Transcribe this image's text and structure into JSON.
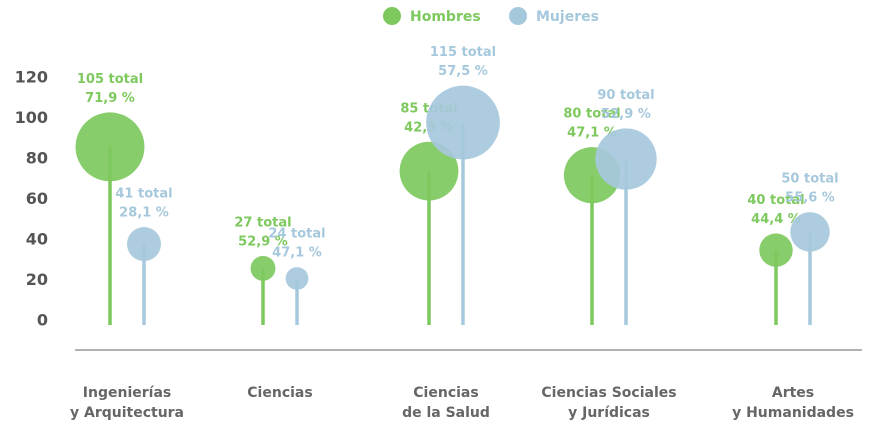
{
  "chart_data": {
    "type": "lollipop-bubble",
    "categories": [
      [
        "Ingenierías",
        "y Arquitectura"
      ],
      [
        "Ciencias"
      ],
      [
        "Ciencias",
        "de la Salud"
      ],
      [
        "Ciencias Sociales",
        "y Jurídicas"
      ],
      [
        "Artes",
        "y Humanidades"
      ]
    ],
    "series": [
      {
        "name": "Hombres",
        "color": "#7dc95e",
        "values": [
          86,
          26,
          74,
          72,
          35
        ],
        "sizes": [
          105,
          27,
          85,
          80,
          40
        ],
        "size_labels": [
          "105 total",
          "27 total",
          "85 total",
          "80 total",
          "40 total"
        ],
        "percents": [
          71.9,
          52.9,
          42.5,
          47.1,
          44.4
        ],
        "percent_labels": [
          "71,9 %",
          "52,9 %",
          "42,5 %",
          "47,1 %",
          "44,4 %"
        ]
      },
      {
        "name": "Mujeres",
        "color": "#a6c8dc",
        "values": [
          38,
          21,
          98,
          80,
          44
        ],
        "sizes": [
          41,
          24,
          115,
          90,
          50
        ],
        "size_labels": [
          "41 total",
          "24 total",
          "115 total",
          "90 total",
          "50 total"
        ],
        "percents": [
          28.1,
          47.1,
          57.5,
          52.9,
          55.6
        ],
        "percent_labels": [
          "28,1 %",
          "47,1 %",
          "57,5 %",
          "52,9 %",
          "55,6 %"
        ]
      }
    ],
    "ylim": [
      0,
      120
    ],
    "yticks": [
      0,
      20,
      40,
      60,
      80,
      100,
      120
    ],
    "legend": "top"
  }
}
